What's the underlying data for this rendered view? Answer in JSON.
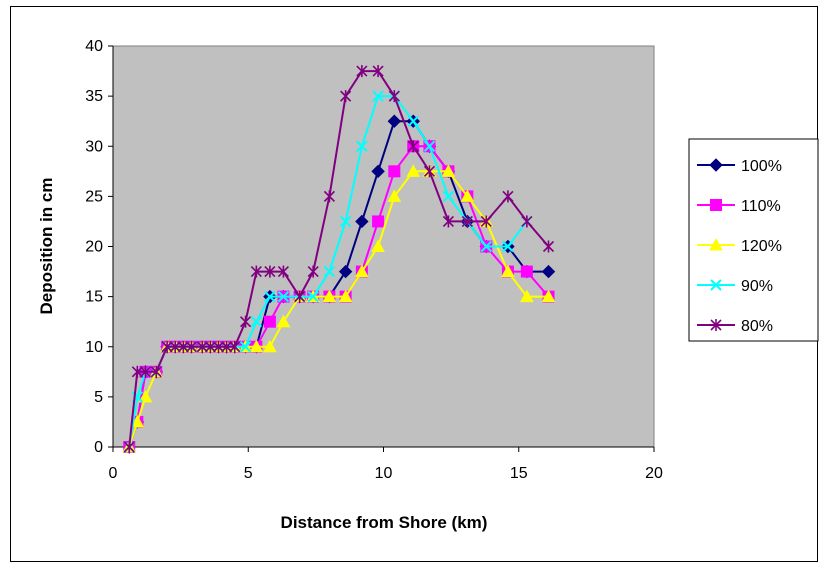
{
  "chart_data": {
    "type": "line",
    "xlabel": "Distance from Shore (km)",
    "ylabel": "Deposition in cm",
    "xlim": [
      0,
      20
    ],
    "ylim": [
      0,
      40
    ],
    "xticks": [
      "0",
      "5",
      "10",
      "15",
      "20"
    ],
    "yticks": [
      "0",
      "5",
      "10",
      "15",
      "20",
      "25",
      "30",
      "35",
      "40"
    ],
    "plot_background": "#C0C0C0",
    "grid": false,
    "legend_position": "right",
    "series": [
      {
        "name": "100%",
        "color": "#000080",
        "marker": "diamond",
        "x": [
          0.6,
          0.9,
          1.2,
          1.6,
          2.0,
          2.3,
          2.6,
          2.9,
          3.3,
          3.6,
          3.9,
          4.2,
          4.5,
          4.9,
          5.3,
          5.8,
          6.3,
          6.9,
          7.4,
          8.0,
          8.6,
          9.2,
          9.8,
          10.4,
          11.1,
          11.7,
          12.4,
          13.1,
          13.8,
          14.6,
          15.3,
          16.1
        ],
        "y": [
          0,
          2.5,
          7.5,
          7.5,
          10,
          10,
          10,
          10,
          10,
          10,
          10,
          10,
          10,
          10,
          10,
          15,
          15,
          15,
          15,
          15,
          17.5,
          22.5,
          27.5,
          32.5,
          32.5,
          30,
          27.5,
          22.5,
          20,
          20,
          17.5,
          17.5
        ]
      },
      {
        "name": "110%",
        "color": "#FF00FF",
        "marker": "square",
        "x": [
          0.6,
          0.9,
          1.2,
          1.6,
          2.0,
          2.3,
          2.6,
          2.9,
          3.3,
          3.6,
          3.9,
          4.2,
          4.5,
          4.9,
          5.3,
          5.8,
          6.3,
          6.9,
          7.4,
          8.0,
          8.6,
          9.2,
          9.8,
          10.4,
          11.1,
          11.7,
          12.4,
          13.1,
          13.8,
          14.6,
          15.3,
          16.1
        ],
        "y": [
          0,
          2.5,
          7.5,
          7.5,
          10,
          10,
          10,
          10,
          10,
          10,
          10,
          10,
          10,
          10,
          10,
          12.5,
          15,
          15,
          15,
          15,
          15,
          17.5,
          22.5,
          27.5,
          30,
          30,
          27.5,
          25,
          20,
          17.5,
          17.5,
          15
        ]
      },
      {
        "name": "120%",
        "color": "#FFFF00",
        "marker": "triangle",
        "x": [
          0.6,
          0.9,
          1.2,
          1.6,
          2.0,
          2.3,
          2.6,
          2.9,
          3.3,
          3.6,
          3.9,
          4.2,
          4.5,
          4.9,
          5.3,
          5.8,
          6.3,
          6.9,
          7.4,
          8.0,
          8.6,
          9.2,
          9.8,
          10.4,
          11.1,
          11.7,
          12.4,
          13.1,
          13.8,
          14.6,
          15.3,
          16.1
        ],
        "y": [
          0,
          2.5,
          5,
          7.5,
          10,
          10,
          10,
          10,
          10,
          10,
          10,
          10,
          10,
          10,
          10,
          10,
          12.5,
          15,
          15,
          15,
          15,
          17.5,
          20,
          25,
          27.5,
          27.5,
          27.5,
          25,
          22.5,
          17.5,
          15,
          15
        ]
      },
      {
        "name": "90%",
        "color": "#00FFFF",
        "marker": "x",
        "x": [
          0.6,
          0.9,
          1.2,
          1.6,
          2.0,
          2.3,
          2.6,
          2.9,
          3.3,
          3.6,
          3.9,
          4.2,
          4.5,
          4.9,
          5.3,
          5.8,
          6.3,
          6.9,
          7.4,
          8.0,
          8.6,
          9.2,
          9.8,
          10.4,
          11.1,
          11.7,
          12.4,
          13.1,
          13.8,
          14.6,
          15.3
        ],
        "y": [
          0,
          5,
          7.5,
          7.5,
          10,
          10,
          10,
          10,
          10,
          10,
          10,
          10,
          10,
          10,
          12.5,
          15,
          15,
          15,
          15,
          17.5,
          22.5,
          30,
          35,
          35,
          32.5,
          30,
          25,
          22.5,
          20,
          20,
          22.5
        ]
      },
      {
        "name": "80%",
        "color": "#800080",
        "marker": "star",
        "x": [
          0.6,
          0.9,
          1.2,
          1.6,
          2.0,
          2.3,
          2.6,
          2.9,
          3.3,
          3.6,
          3.9,
          4.2,
          4.5,
          4.9,
          5.3,
          5.8,
          6.3,
          6.9,
          7.4,
          8.0,
          8.6,
          9.2,
          9.8,
          10.4,
          11.1,
          11.7,
          12.4,
          13.1,
          13.8,
          14.6,
          15.3,
          16.1
        ],
        "y": [
          0,
          7.5,
          7.5,
          7.5,
          10,
          10,
          10,
          10,
          10,
          10,
          10,
          10,
          10,
          12.5,
          17.5,
          17.5,
          17.5,
          15,
          17.5,
          25,
          35,
          37.5,
          37.5,
          35,
          30,
          27.5,
          22.5,
          22.5,
          22.5,
          25,
          22.5,
          20
        ]
      }
    ]
  }
}
